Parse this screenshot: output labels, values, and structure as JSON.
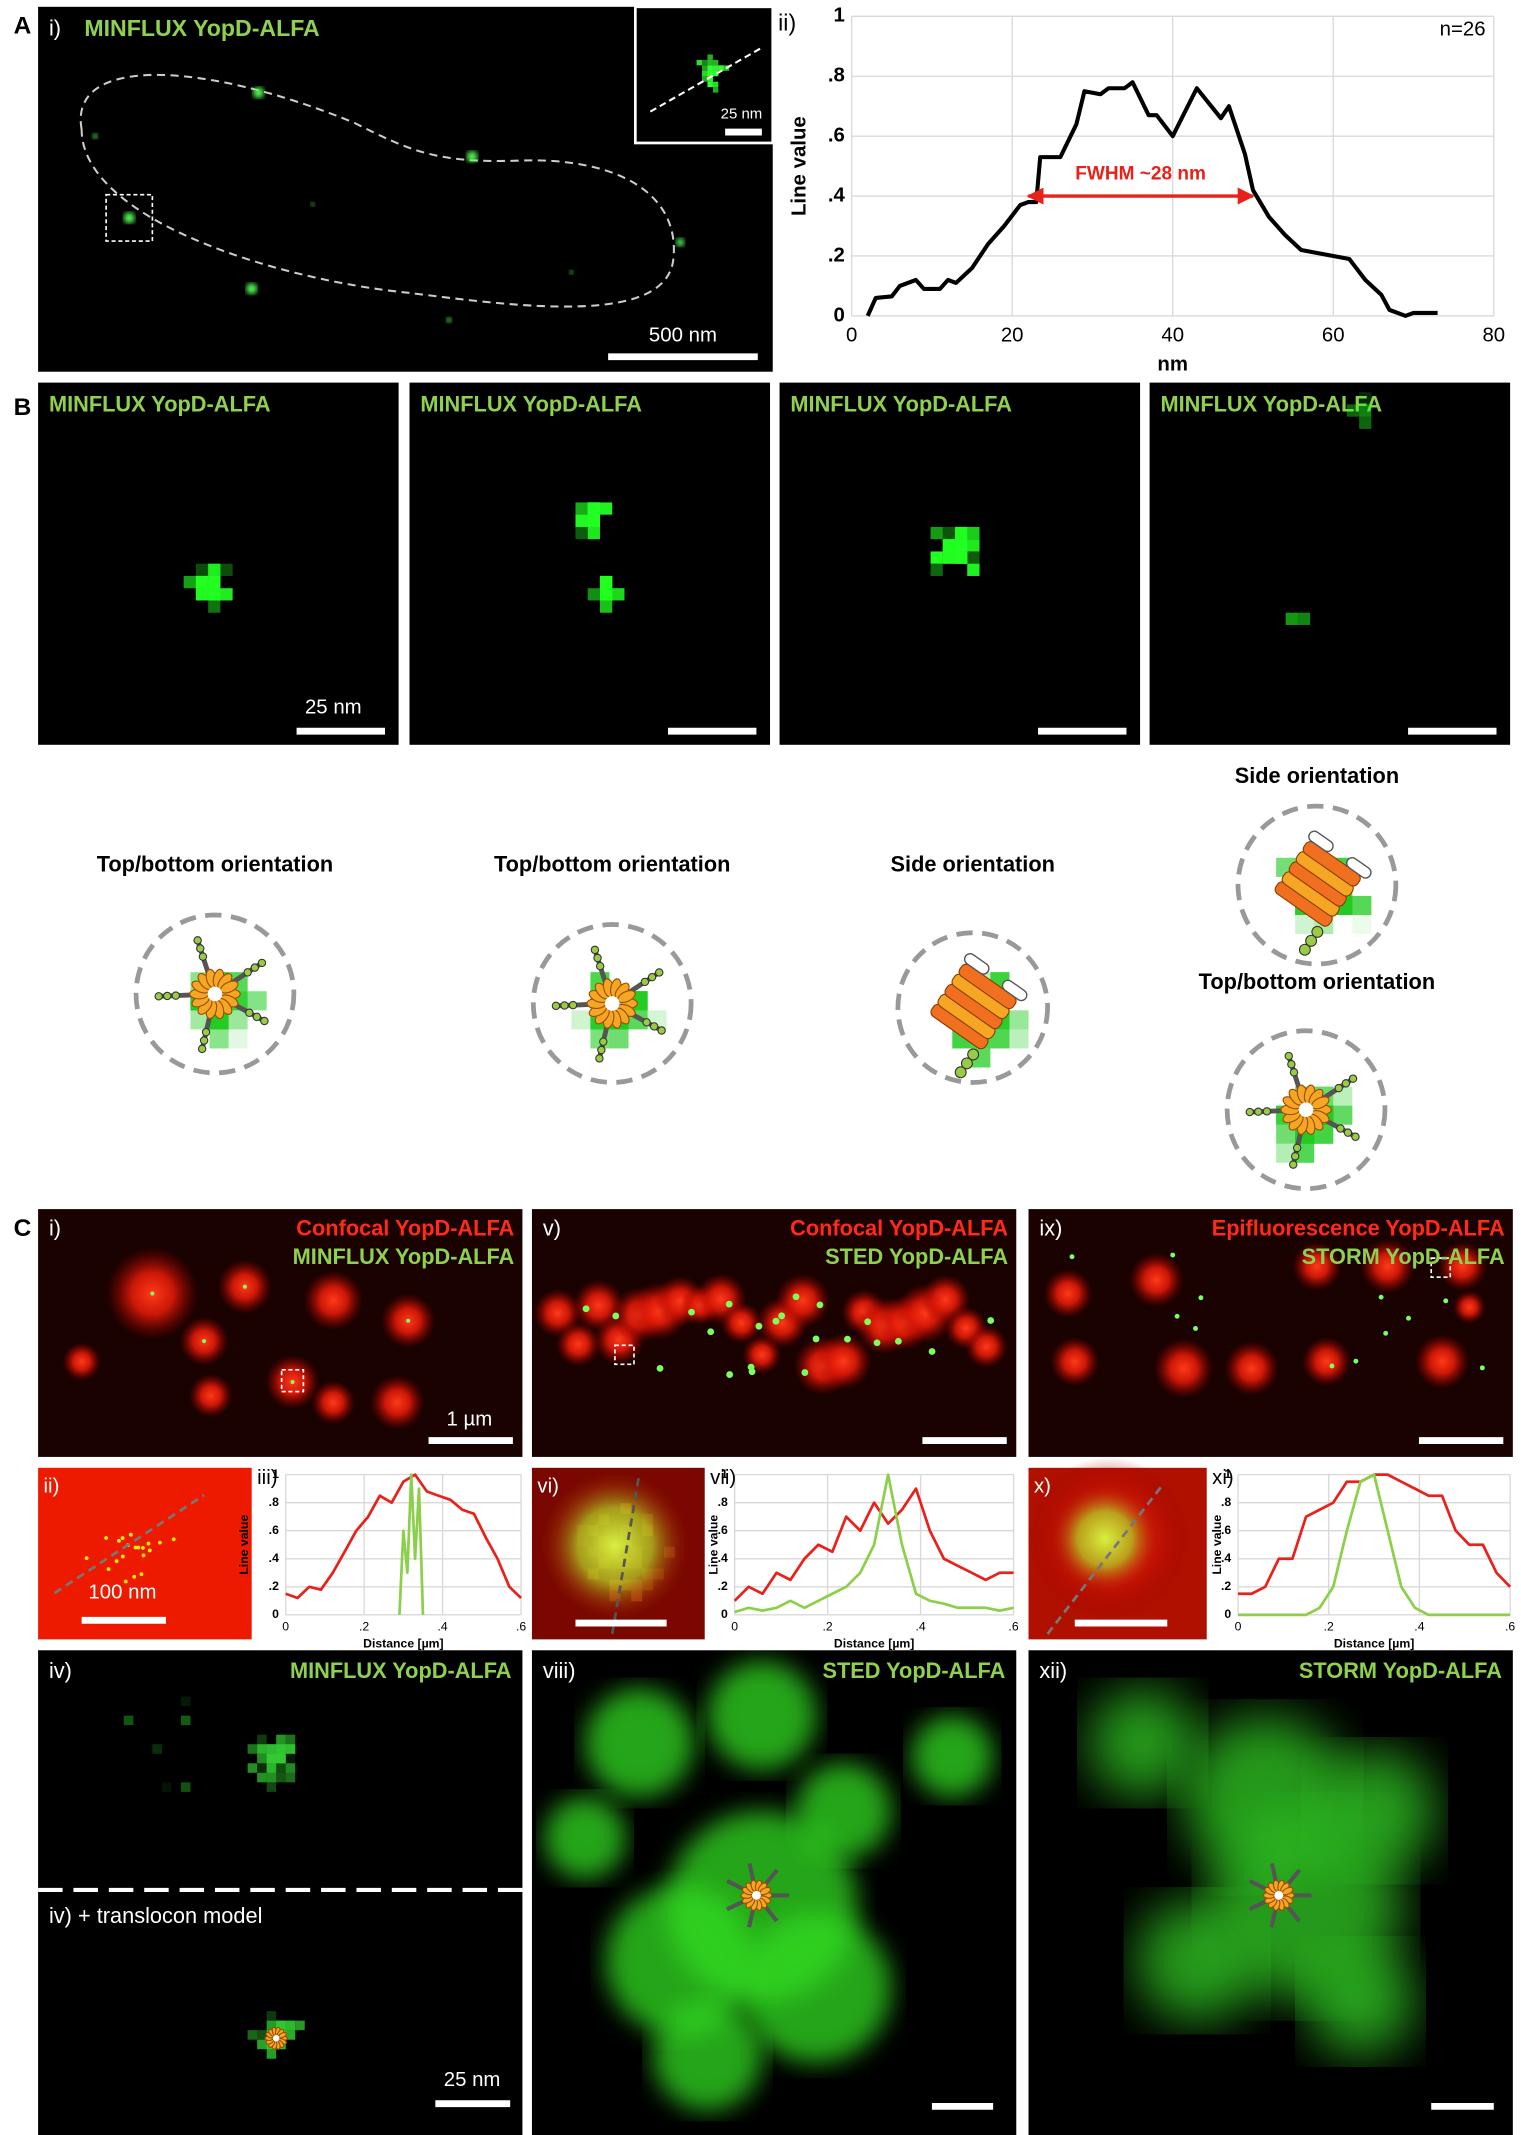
{
  "panel_labels": [
    "A",
    "B",
    "C"
  ],
  "panel_a": {
    "label": "i)",
    "title": "MINFLUX YopD-ALFA",
    "scale_bar": "500 nm",
    "inset_scale_bar": "25 nm"
  },
  "panel_b": {
    "images": [
      {
        "title": "MINFLUX YopD-ALFA",
        "scale_bar": "25 nm"
      },
      {
        "title": "MINFLUX YopD-ALFA"
      },
      {
        "title": "MINFLUX YopD-ALFA"
      },
      {
        "title": "MINFLUX YopD-ALFA"
      }
    ],
    "models": [
      "Top/bottom orientation",
      "Top/bottom orientation",
      "Side orientation",
      "Side orientation",
      "Top/bottom orientation"
    ]
  },
  "panel_c": {
    "top": [
      {
        "label": "i)",
        "line1": "Confocal YopD-ALFA",
        "line2": "MINFLUX YopD-ALFA",
        "scale_bar": "1 µm"
      },
      {
        "label": "v)",
        "line1": "Confocal YopD-ALFA",
        "line2": "STED YopD-ALFA"
      },
      {
        "label": "ix)",
        "line1": "Epifluorescence YopD-ALFA",
        "line2": "STORM YopD-ALFA"
      }
    ],
    "zoom": [
      {
        "label": "ii)",
        "scale_bar": "100 nm"
      },
      {
        "label": "vi)"
      },
      {
        "label": "x)"
      }
    ],
    "bottom": [
      {
        "label": "iv)",
        "title": "MINFLUX YopD-ALFA",
        "model_label": "iv) + translocon model",
        "scale_bar": "25 nm"
      },
      {
        "label": "viii)",
        "title": "STED YopD-ALFA"
      },
      {
        "label": "xii)",
        "title": "STORM YopD-ALFA"
      }
    ]
  },
  "chart_data": [
    {
      "type": "line",
      "label": "ii)",
      "annotation": "n=26",
      "fwhm_label": "FWHM ~28 nm",
      "fwhm_span": [
        22,
        50
      ],
      "fwhm_level": 0.4,
      "xlabel": "nm",
      "ylabel": "Line value",
      "x": [
        2,
        3,
        5,
        6,
        8,
        9,
        11,
        12,
        13,
        15,
        17,
        19,
        21,
        22,
        23,
        23.5,
        26,
        28,
        29,
        31,
        32,
        34,
        35,
        37,
        38,
        40,
        43,
        46,
        47,
        49,
        50,
        52,
        54,
        56,
        58,
        60,
        62,
        64,
        66,
        67,
        69,
        70,
        73
      ],
      "series": [
        {
          "color": "#000000",
          "values": [
            0,
            0.06,
            0.065,
            0.1,
            0.12,
            0.09,
            0.09,
            0.12,
            0.11,
            0.16,
            0.24,
            0.3,
            0.37,
            0.38,
            0.38,
            0.53,
            0.53,
            0.64,
            0.75,
            0.74,
            0.76,
            0.76,
            0.78,
            0.67,
            0.67,
            0.6,
            0.76,
            0.66,
            0.7,
            0.54,
            0.42,
            0.33,
            0.27,
            0.22,
            0.21,
            0.2,
            0.19,
            0.12,
            0.07,
            0.02,
            0,
            0.01,
            0.01
          ]
        }
      ],
      "xlim": [
        0,
        80
      ],
      "xticks": [
        0,
        20,
        40,
        60,
        80
      ],
      "ylim": [
        0,
        1
      ],
      "yticks": [
        0,
        {
          "value": 0.2,
          "label": ".2"
        },
        {
          "value": 0.4,
          "label": ".4"
        },
        {
          "value": 0.6,
          "label": ".6"
        },
        {
          "value": 0.8,
          "label": ".8"
        },
        1
      ],
      "grid": true
    },
    {
      "type": "line",
      "label": "iii)",
      "xlabel": "Distance [µm]",
      "ylabel": "Line value",
      "x": [
        0,
        0.03,
        0.06,
        0.09,
        0.12,
        0.15,
        0.18,
        0.21,
        0.24,
        0.27,
        0.3,
        0.33,
        0.36,
        0.39,
        0.42,
        0.45,
        0.48,
        0.51,
        0.54,
        0.57,
        0.6
      ],
      "series": [
        {
          "color": "#e8211b",
          "values": [
            0.15,
            0.12,
            0.2,
            0.18,
            0.3,
            0.45,
            0.6,
            0.7,
            0.85,
            0.8,
            0.95,
            1,
            0.88,
            0.85,
            0.82,
            0.75,
            0.72,
            0.55,
            0.4,
            0.2,
            0.12
          ]
        },
        {
          "color": "#8ccf4a",
          "x": [
            0.29,
            0.3,
            0.31,
            0.32,
            0.33,
            0.34,
            0.35
          ],
          "values": [
            0,
            0.6,
            0.3,
            1,
            0.4,
            0.9,
            0
          ]
        }
      ],
      "xlim": [
        0,
        0.6
      ],
      "xticks": [
        0,
        {
          "value": 0.2,
          "label": ".2"
        },
        {
          "value": 0.4,
          "label": ".4"
        },
        {
          "value": 0.6,
          "label": ".6"
        }
      ],
      "ylim": [
        0,
        1
      ],
      "yticks": [
        0,
        {
          "value": 0.2,
          "label": ".2"
        },
        {
          "value": 0.4,
          "label": ".4"
        },
        {
          "value": 0.6,
          "label": ".6"
        },
        {
          "value": 0.8,
          "label": ".8"
        },
        1
      ],
      "grid": true
    },
    {
      "type": "line",
      "label": "vii)",
      "xlabel": "Distance [µm]",
      "ylabel": "Line value",
      "x": [
        0,
        0.03,
        0.06,
        0.09,
        0.12,
        0.15,
        0.18,
        0.21,
        0.24,
        0.27,
        0.3,
        0.33,
        0.36,
        0.39,
        0.42,
        0.45,
        0.48,
        0.51,
        0.54,
        0.57,
        0.6
      ],
      "series": [
        {
          "color": "#e8211b",
          "values": [
            0.1,
            0.2,
            0.15,
            0.3,
            0.25,
            0.4,
            0.5,
            0.45,
            0.7,
            0.6,
            0.8,
            0.65,
            0.75,
            0.9,
            0.6,
            0.4,
            0.35,
            0.3,
            0.25,
            0.3,
            0.3
          ]
        },
        {
          "color": "#8ccf4a",
          "values": [
            0.02,
            0.05,
            0.03,
            0.05,
            0.1,
            0.05,
            0.1,
            0.15,
            0.2,
            0.3,
            0.5,
            1,
            0.5,
            0.15,
            0.1,
            0.08,
            0.05,
            0.05,
            0.05,
            0.03,
            0.05
          ]
        }
      ],
      "xlim": [
        0,
        0.6
      ],
      "xticks": [
        0,
        {
          "value": 0.2,
          "label": ".2"
        },
        {
          "value": 0.4,
          "label": ".4"
        },
        {
          "value": 0.6,
          "label": ".6"
        }
      ],
      "ylim": [
        0,
        1
      ],
      "yticks": [
        0,
        {
          "value": 0.2,
          "label": ".2"
        },
        {
          "value": 0.4,
          "label": ".4"
        },
        {
          "value": 0.6,
          "label": ".6"
        },
        {
          "value": 0.8,
          "label": ".8"
        },
        1
      ],
      "grid": true
    },
    {
      "type": "line",
      "label": "xi)",
      "xlabel": "Distance [µm]",
      "ylabel": "Line value",
      "x": [
        0,
        0.03,
        0.06,
        0.09,
        0.12,
        0.15,
        0.18,
        0.21,
        0.24,
        0.27,
        0.3,
        0.33,
        0.36,
        0.39,
        0.42,
        0.45,
        0.48,
        0.51,
        0.54,
        0.57,
        0.6
      ],
      "series": [
        {
          "color": "#e8211b",
          "values": [
            0.15,
            0.15,
            0.2,
            0.4,
            0.4,
            0.7,
            0.75,
            0.8,
            0.95,
            0.95,
            1,
            1,
            0.95,
            0.9,
            0.85,
            0.85,
            0.6,
            0.5,
            0.5,
            0.3,
            0.2
          ]
        },
        {
          "color": "#8ccf4a",
          "values": [
            0,
            0,
            0,
            0,
            0,
            0,
            0.05,
            0.2,
            0.6,
            0.95,
            1,
            0.6,
            0.2,
            0.05,
            0,
            0,
            0,
            0,
            0,
            0,
            0
          ]
        }
      ],
      "xlim": [
        0,
        0.6
      ],
      "xticks": [
        0,
        {
          "value": 0.2,
          "label": ".2"
        },
        {
          "value": 0.4,
          "label": ".4"
        },
        {
          "value": 0.6,
          "label": ".6"
        }
      ],
      "ylim": [
        0,
        1
      ],
      "yticks": [
        0,
        {
          "value": 0.2,
          "label": ".2"
        },
        {
          "value": 0.4,
          "label": ".4"
        },
        {
          "value": 0.6,
          "label": ".6"
        },
        {
          "value": 0.8,
          "label": ".8"
        },
        1
      ],
      "grid": true
    }
  ]
}
